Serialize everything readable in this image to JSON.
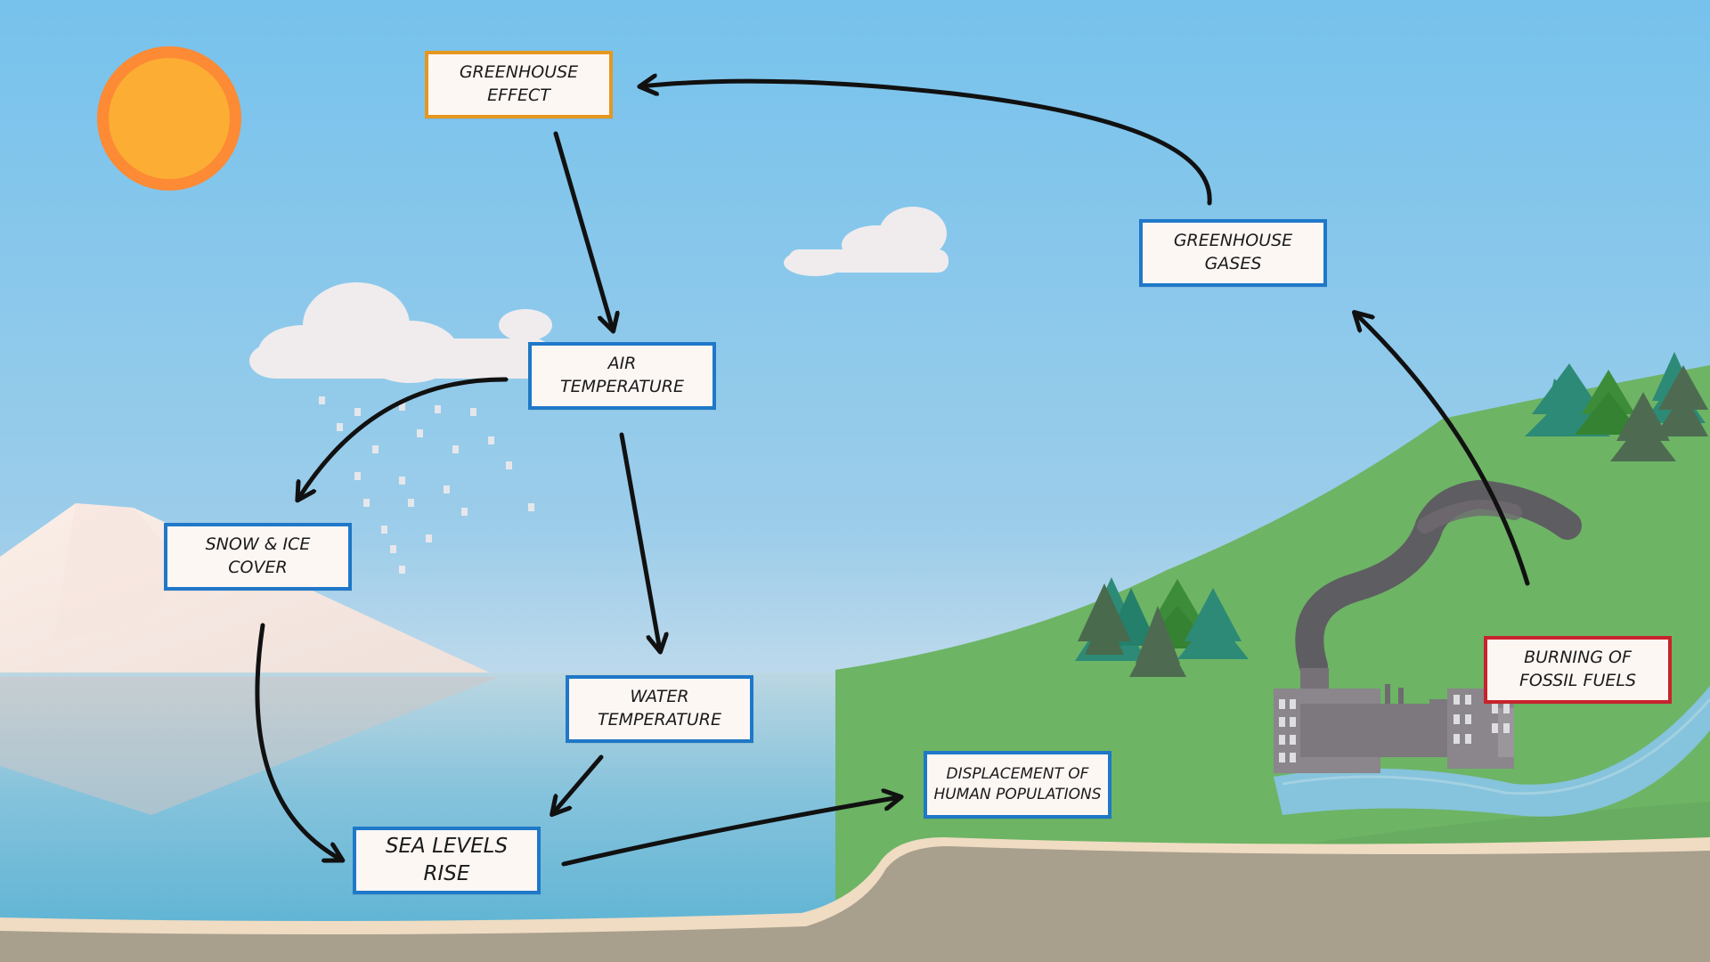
{
  "diagram": {
    "nodes": {
      "greenhouse_effect": "GREENHOUSE\nEFFECT",
      "greenhouse_gases": "GREENHOUSE\nGASES",
      "air_temperature": "AIR\nTEMPERATURE",
      "snow_ice_cover": "SNOW & ICE\nCOVER",
      "water_temperature": "WATER\nTEMPERATURE",
      "sea_levels_rise": "SEA LEVELS\nRISE",
      "displacement": "DISPLACEMENT OF\nHUMAN POPULATIONS",
      "burning_fossil_fuels": "BURNING OF\nFOSSIL FUELS"
    },
    "edges": [
      {
        "from": "burning_fossil_fuels",
        "to": "greenhouse_gases"
      },
      {
        "from": "greenhouse_gases",
        "to": "greenhouse_effect"
      },
      {
        "from": "greenhouse_effect",
        "to": "air_temperature"
      },
      {
        "from": "air_temperature",
        "to": "snow_ice_cover"
      },
      {
        "from": "air_temperature",
        "to": "water_temperature"
      },
      {
        "from": "snow_ice_cover",
        "to": "sea_levels_rise"
      },
      {
        "from": "water_temperature",
        "to": "sea_levels_rise"
      },
      {
        "from": "sea_levels_rise",
        "to": "displacement"
      }
    ]
  },
  "colors": {
    "sky": "#7ec4ec",
    "sun": "#fcae34",
    "sun_ring": "#fd8a34",
    "node_border": "#1f78c8",
    "greenhouse_effect_border": "#e5971f",
    "fossil_fuels_border": "#c8232c",
    "hill": "#6db465",
    "water": "#6dbad6",
    "ground": "#a9a08e",
    "arrow": "#111111"
  }
}
